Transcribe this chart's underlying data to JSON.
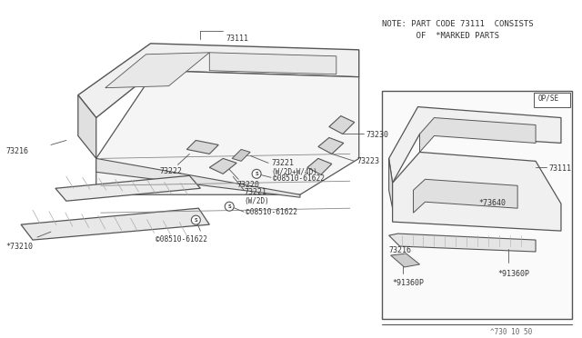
{
  "bg_color": "#ffffff",
  "line_color": "#555555",
  "text_color": "#444444",
  "note_line1": "NOTE: PART CODE 73111  CONSISTS",
  "note_line2": "       OF  *MARKED PARTS",
  "footer_text": "^730 10 50",
  "op_se_label": "OP/SE",
  "font_size": 6.0,
  "font_size_note": 6.5,
  "font_size_footer": 5.5
}
